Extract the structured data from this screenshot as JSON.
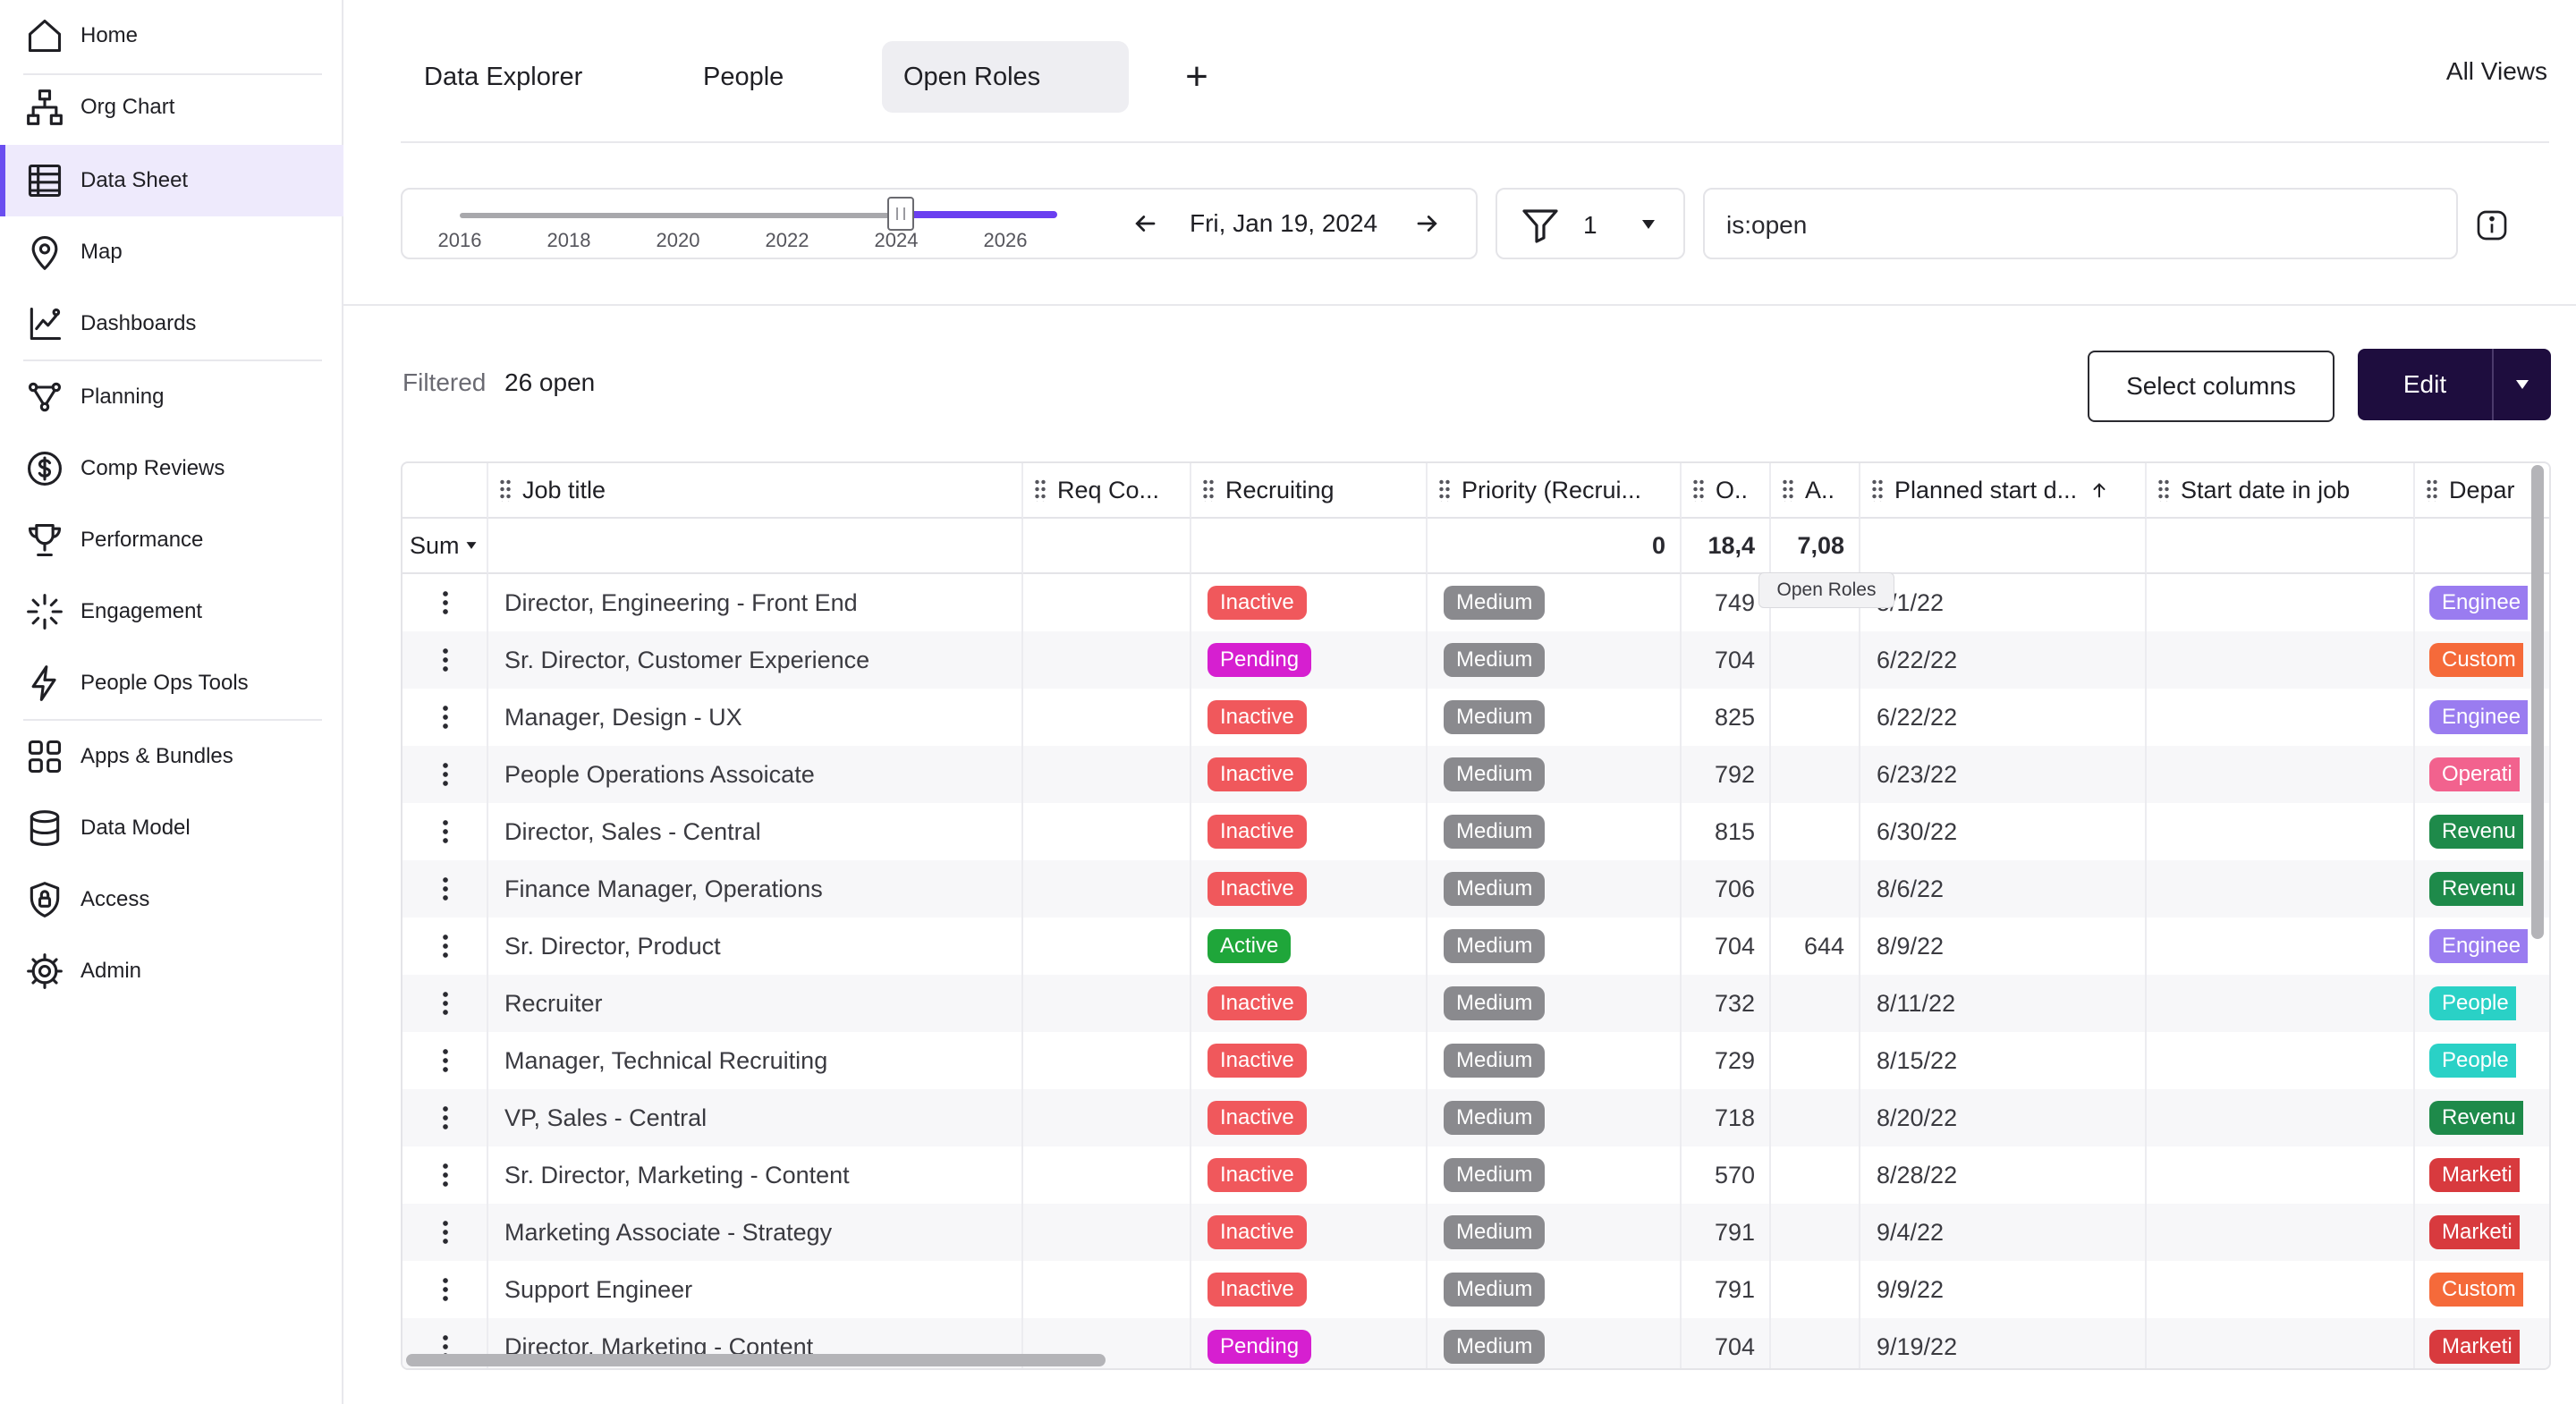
{
  "sidebar": {
    "items": [
      {
        "label": "Home",
        "icon": "home-icon"
      },
      {
        "label": "Org Chart",
        "icon": "org-chart-icon"
      },
      {
        "label": "Data Sheet",
        "icon": "data-sheet-icon",
        "active": true
      },
      {
        "label": "Map",
        "icon": "map-pin-icon"
      },
      {
        "label": "Dashboards",
        "icon": "dashboards-icon"
      },
      {
        "label": "Planning",
        "icon": "planning-icon"
      },
      {
        "label": "Comp Reviews",
        "icon": "dollar-icon"
      },
      {
        "label": "Performance",
        "icon": "trophy-icon"
      },
      {
        "label": "Engagement",
        "icon": "sparkle-icon"
      },
      {
        "label": "People Ops Tools",
        "icon": "bolt-icon"
      },
      {
        "label": "Apps & Bundles",
        "icon": "apps-icon"
      },
      {
        "label": "Data Model",
        "icon": "database-icon"
      },
      {
        "label": "Access",
        "icon": "shield-icon"
      },
      {
        "label": "Admin",
        "icon": "gear-icon"
      }
    ]
  },
  "tabs": [
    {
      "label": "Data Explorer"
    },
    {
      "label": "People"
    },
    {
      "label": "Open Roles",
      "active": true
    }
  ],
  "add_tab": "+",
  "all_views": "All Views",
  "timeline": {
    "years": [
      "2016",
      "2018",
      "2020",
      "2022",
      "2024",
      "2026"
    ],
    "date": "Fri, Jan 19, 2024"
  },
  "filter": {
    "count": "1"
  },
  "search": {
    "value": "is:open"
  },
  "summary": {
    "filtered_label": "Filtered",
    "count_text": "26 open"
  },
  "buttons": {
    "select_columns": "Select columns",
    "edit": "Edit"
  },
  "grid": {
    "columns": [
      "",
      "Job title",
      "Req Co...",
      "Recruiting",
      "Priority (Recrui...",
      "O..",
      "A..",
      "Planned start d...",
      "Start date in job",
      "Depar"
    ],
    "sum_label": "Sum",
    "sum_values": {
      "priority": "0",
      "o": "18,4",
      "a": "7,08"
    },
    "tooltip": "Open Roles",
    "rows": [
      {
        "title": "Director, Engineering - Front End",
        "recruiting": "Inactive",
        "priority": "Medium",
        "o": "749",
        "a": "",
        "planned": "5/1/22",
        "dept": "Enginee"
      },
      {
        "title": "Sr. Director, Customer Experience",
        "recruiting": "Pending",
        "priority": "Medium",
        "o": "704",
        "a": "",
        "planned": "6/22/22",
        "dept": "Custom"
      },
      {
        "title": "Manager, Design - UX",
        "recruiting": "Inactive",
        "priority": "Medium",
        "o": "825",
        "a": "",
        "planned": "6/22/22",
        "dept": "Enginee"
      },
      {
        "title": "People Operations Assoicate",
        "recruiting": "Inactive",
        "priority": "Medium",
        "o": "792",
        "a": "",
        "planned": "6/23/22",
        "dept": "Operati"
      },
      {
        "title": "Director, Sales - Central",
        "recruiting": "Inactive",
        "priority": "Medium",
        "o": "815",
        "a": "",
        "planned": "6/30/22",
        "dept": "Revenu"
      },
      {
        "title": "Finance Manager, Operations",
        "recruiting": "Inactive",
        "priority": "Medium",
        "o": "706",
        "a": "",
        "planned": "8/6/22",
        "dept": "Revenu"
      },
      {
        "title": "Sr. Director, Product",
        "recruiting": "Active",
        "priority": "Medium",
        "o": "704",
        "a": "644",
        "planned": "8/9/22",
        "dept": "Enginee"
      },
      {
        "title": "Recruiter",
        "recruiting": "Inactive",
        "priority": "Medium",
        "o": "732",
        "a": "",
        "planned": "8/11/22",
        "dept": "People"
      },
      {
        "title": "Manager, Technical Recruiting",
        "recruiting": "Inactive",
        "priority": "Medium",
        "o": "729",
        "a": "",
        "planned": "8/15/22",
        "dept": "People"
      },
      {
        "title": "VP, Sales - Central",
        "recruiting": "Inactive",
        "priority": "Medium",
        "o": "718",
        "a": "",
        "planned": "8/20/22",
        "dept": "Revenu"
      },
      {
        "title": "Sr. Director, Marketing - Content",
        "recruiting": "Inactive",
        "priority": "Medium",
        "o": "570",
        "a": "",
        "planned": "8/28/22",
        "dept": "Marketi"
      },
      {
        "title": "Marketing Associate - Strategy",
        "recruiting": "Inactive",
        "priority": "Medium",
        "o": "791",
        "a": "",
        "planned": "9/4/22",
        "dept": "Marketi"
      },
      {
        "title": "Support Engineer",
        "recruiting": "Inactive",
        "priority": "Medium",
        "o": "791",
        "a": "",
        "planned": "9/9/22",
        "dept": "Custom"
      },
      {
        "title": "Director, Marketing - Content",
        "recruiting": "Pending",
        "priority": "Medium",
        "o": "704",
        "a": "",
        "planned": "9/19/22",
        "dept": "Marketi"
      }
    ]
  },
  "colors": {
    "accent": "#6a4ef0",
    "recruiting": {
      "Inactive": "#f0585c",
      "Pending": "#d61fd0",
      "Active": "#1fa63a"
    },
    "priority": "#8a8a8e",
    "dept": {
      "Enginee": "#9a7cf0",
      "Custom": "#f56a3a",
      "Operati": "#f2628e",
      "Revenu": "#1e8a4a",
      "People": "#2ad1c6",
      "Marketi": "#d83a3e"
    }
  }
}
